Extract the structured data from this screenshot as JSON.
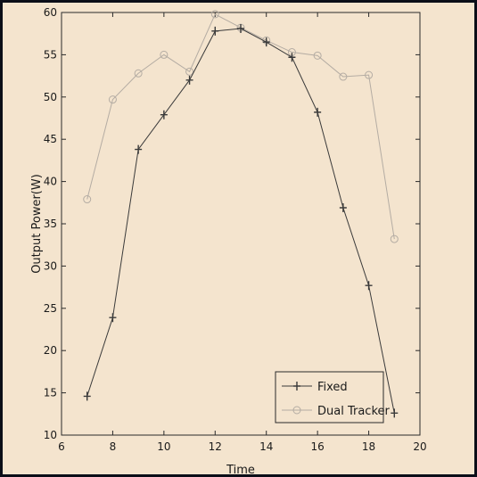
{
  "chart_data": {
    "type": "line",
    "title": "",
    "xlabel": "Time",
    "ylabel": "Output Power(W)",
    "xlim": [
      6,
      20
    ],
    "ylim": [
      10,
      60
    ],
    "xticks": [
      6,
      8,
      10,
      12,
      14,
      16,
      18,
      20
    ],
    "yticks": [
      10,
      15,
      20,
      25,
      30,
      35,
      40,
      45,
      50,
      55,
      60
    ],
    "grid": false,
    "legend_position": "bottom-right",
    "series": [
      {
        "name": "Fixed",
        "marker": "plus",
        "color": "#3a3a3a",
        "x": [
          7,
          8,
          9,
          10,
          11,
          12,
          13,
          14,
          15,
          16,
          17,
          18,
          19
        ],
        "y": [
          14.6,
          23.9,
          43.8,
          47.9,
          52.0,
          57.8,
          58.1,
          56.5,
          54.7,
          48.2,
          36.9,
          27.7,
          12.6
        ]
      },
      {
        "name": "Dual Tracker",
        "marker": "circle",
        "color": "#b4aca3",
        "x": [
          7,
          8,
          9,
          10,
          11,
          12,
          13,
          14,
          15,
          16,
          17,
          18,
          19
        ],
        "y": [
          37.9,
          49.7,
          52.8,
          55.0,
          53.0,
          59.8,
          58.2,
          56.7,
          55.3,
          54.9,
          52.4,
          52.6,
          33.2
        ]
      }
    ]
  }
}
